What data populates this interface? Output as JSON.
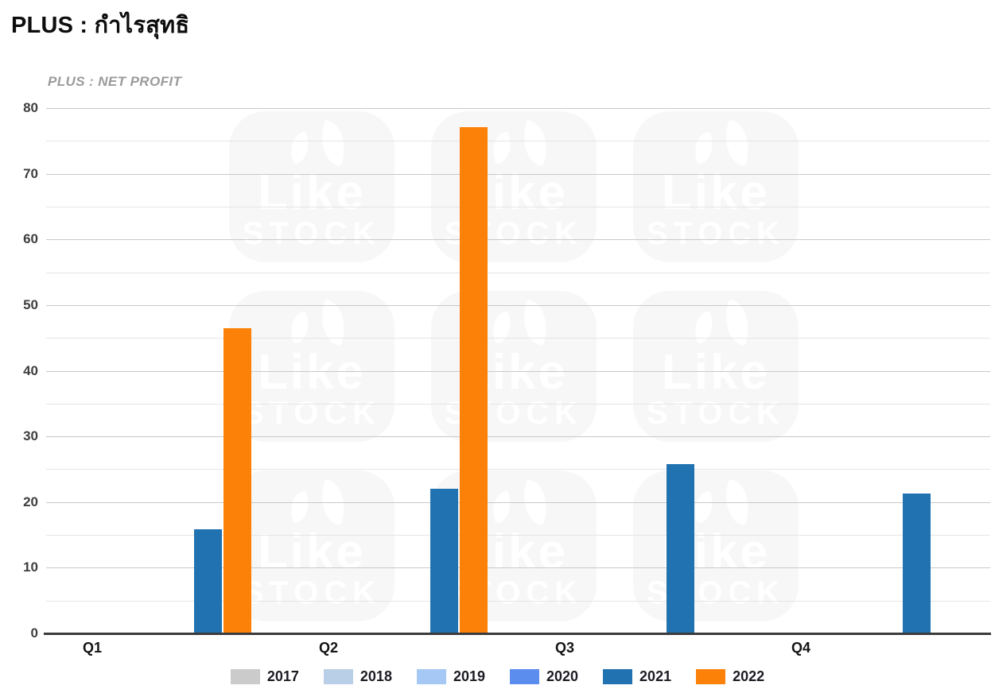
{
  "page": {
    "title": "PLUS : กำไรสุทธิ",
    "watermark": {
      "line1": "Like",
      "line2": "STOCK",
      "icon": "leaf-icon"
    }
  },
  "chart_data": {
    "type": "bar",
    "title": "PLUS : NET PROFIT",
    "categories": [
      "Q1",
      "Q2",
      "Q3",
      "Q4"
    ],
    "series": [
      {
        "name": "2017",
        "color": "#cbcbcb",
        "values": [
          0,
          0,
          0,
          0
        ]
      },
      {
        "name": "2018",
        "color": "#b9cfe8",
        "values": [
          0,
          0,
          0,
          0
        ]
      },
      {
        "name": "2019",
        "color": "#a6c8f4",
        "values": [
          0,
          0,
          0,
          0
        ]
      },
      {
        "name": "2020",
        "color": "#5b8def",
        "values": [
          0,
          0,
          0,
          0
        ]
      },
      {
        "name": "2021",
        "color": "#2072b0",
        "values": [
          15.9,
          22.0,
          25.8,
          21.3
        ]
      },
      {
        "name": "2022",
        "color": "#fc8109",
        "values": [
          46.5,
          77.1,
          null,
          null
        ]
      }
    ],
    "ylabel": "",
    "xlabel": "",
    "ylim": [
      0,
      80
    ],
    "ytick_step": 10,
    "grid_minor_step": 5,
    "yticks": [
      0,
      10,
      20,
      30,
      40,
      50,
      60,
      70,
      80
    ],
    "grid": true,
    "legend_position": "bottom"
  }
}
